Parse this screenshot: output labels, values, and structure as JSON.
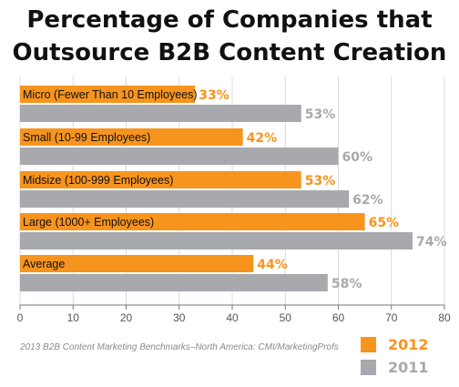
{
  "chart_data": {
    "type": "bar",
    "orientation": "horizontal",
    "title_lines": [
      "Percentage of Companies that",
      "Outsource B2B Content Creation"
    ],
    "categories": [
      "Micro (Fewer Than 10 Employees)",
      "Small (10-99 Employees)",
      "Midsize (100-999 Employees)",
      "Large (1000+ Employees)",
      "Average"
    ],
    "series": [
      {
        "name": "2012",
        "color": "#f7941e",
        "values": [
          33,
          42,
          53,
          65,
          44
        ],
        "labels": [
          "33%",
          "42%",
          "53%",
          "65%",
          "44%"
        ]
      },
      {
        "name": "2011",
        "color": "#a7a9ac",
        "values": [
          53,
          60,
          62,
          74,
          58
        ],
        "labels": [
          "53%",
          "60%",
          "62%",
          "74%",
          "58%"
        ]
      }
    ],
    "xlim": [
      0,
      80
    ],
    "xticks": [
      "0",
      "10",
      "20",
      "30",
      "40",
      "50",
      "60",
      "70",
      "80"
    ],
    "grid": true,
    "legend_position": "bottom-right",
    "source": "2013 B2B Content Marketing Benchmarks–North America: CMI/MarketingProfs"
  }
}
